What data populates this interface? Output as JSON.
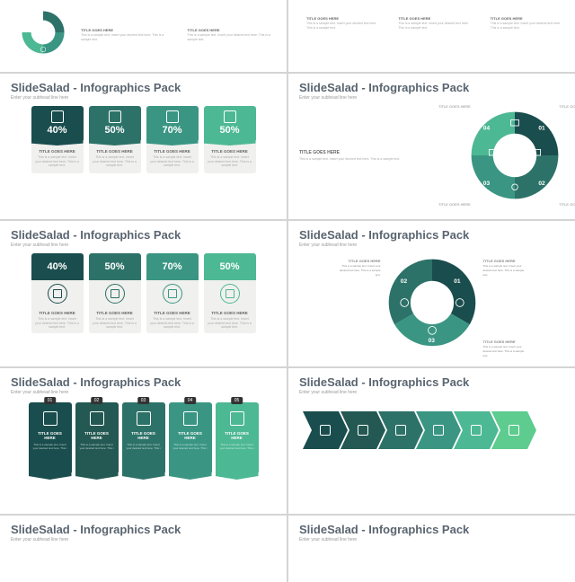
{
  "brand_title": "SlideSalad - Infographics Pack",
  "subtitle": "Enter your subhead line here",
  "title_label": "TITLE GOES HERE",
  "body_text": "This is a sample text. Insert your desired text here. This is a sample text.",
  "colors": {
    "title": "#5a6570",
    "teal_dark": "#1a4d4d",
    "teal_mid": "#2d7268",
    "teal": "#3a9683",
    "teal_light": "#4db894",
    "green": "#5ecc8f",
    "card_bg": "#f0f0ee",
    "text_muted": "#999999"
  },
  "row0": {
    "left_items": [
      {
        "title": "TITLE GOES HERE",
        "body": "This is a sample text. Insert your desired text here."
      },
      {
        "title": "TITLE GOES HERE",
        "body": "This is a sample text. Insert your desired text here."
      }
    ],
    "right_items": [
      {
        "title": "TITLE GOES HERE",
        "body": "This is a sample text. Insert your desired text here."
      },
      {
        "title": "TITLE GOES HERE",
        "body": "This is a sample text. Insert your desired text here."
      },
      {
        "title": "TITLE GOES HERE",
        "body": "This is a sample text. Insert your desired text here."
      }
    ]
  },
  "bookmarks": [
    {
      "pct": "40%",
      "color": "#1a4d4d",
      "icon": "chat"
    },
    {
      "pct": "50%",
      "color": "#2d7268",
      "icon": "cart"
    },
    {
      "pct": "70%",
      "color": "#3a9683",
      "icon": "tag"
    },
    {
      "pct": "50%",
      "color": "#4db894",
      "icon": "gear"
    }
  ],
  "donut4": {
    "segments": [
      {
        "num": "01",
        "color": "#1a4d4d",
        "icon": "monitor"
      },
      {
        "num": "02",
        "color": "#2d7268",
        "icon": "cart"
      },
      {
        "num": "03",
        "color": "#3a9683",
        "icon": "user"
      },
      {
        "num": "04",
        "color": "#4db894",
        "icon": "chat"
      }
    ],
    "labels": [
      "TITLE GOES HERE",
      "TITLE GOES HERE",
      "TITLE GOES HERE",
      "TITLE GOES HERE"
    ]
  },
  "pills": [
    {
      "pct": "40%",
      "color": "#1a4d4d",
      "icon": "megaphone"
    },
    {
      "pct": "50%",
      "color": "#2d7268",
      "icon": "layers"
    },
    {
      "pct": "70%",
      "color": "#3a9683",
      "icon": "analytics"
    },
    {
      "pct": "50%",
      "color": "#4db894",
      "icon": "search"
    }
  ],
  "donut3": {
    "segments": [
      {
        "num": "01",
        "color": "#1a4d4d",
        "icon": "gear"
      },
      {
        "num": "02",
        "color": "#2d7268",
        "icon": "cart"
      },
      {
        "num": "03",
        "color": "#3a9683",
        "icon": "user"
      }
    ],
    "labels": [
      "TITLE GOES HERE",
      "TITLE GOES HERE",
      "TITLE GOES HERE"
    ]
  },
  "ribbons": [
    {
      "num": "01",
      "color": "#1a4d4d",
      "icon": "megaphone"
    },
    {
      "num": "02",
      "color": "#235952",
      "icon": "layers"
    },
    {
      "num": "03",
      "color": "#2d7268",
      "icon": "analytics"
    },
    {
      "num": "04",
      "color": "#3a9683",
      "icon": "search"
    },
    {
      "num": "05",
      "color": "#4db894",
      "icon": "chat"
    }
  ],
  "chevrons": [
    {
      "color": "#1a4d4d",
      "icon": "gear"
    },
    {
      "color": "#235952",
      "icon": "layers"
    },
    {
      "color": "#2d7268",
      "icon": "cart"
    },
    {
      "color": "#3a9683",
      "icon": "tag"
    },
    {
      "color": "#4db894",
      "icon": "chat"
    },
    {
      "color": "#5ecc8f",
      "icon": "truck"
    }
  ]
}
